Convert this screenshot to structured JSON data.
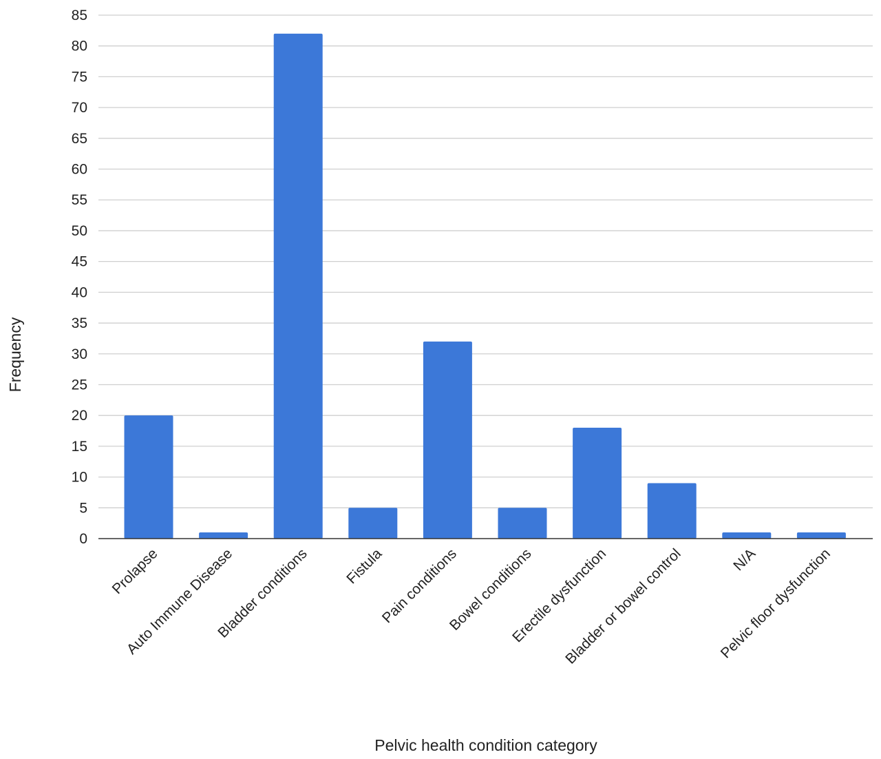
{
  "chart_data": {
    "type": "bar",
    "categories": [
      "Prolapse",
      "Auto Immune Disease",
      "Bladder conditions",
      "Fistula",
      "Pain conditions",
      "Bowel conditions",
      "Erectile dysfunction",
      "Bladder or bowel control",
      "N/A",
      "Pelvic floor dysfunction"
    ],
    "values": [
      20,
      1,
      82,
      5,
      32,
      5,
      18,
      9,
      1,
      1
    ],
    "title": "",
    "xlabel": "Pelvic health condition category",
    "ylabel": "Frequency",
    "ylim": [
      0,
      85
    ],
    "yticks": [
      0,
      5,
      10,
      15,
      20,
      25,
      30,
      35,
      40,
      45,
      50,
      55,
      60,
      65,
      70,
      75,
      80,
      85
    ],
    "grid": true,
    "legend": "none",
    "bar_color": "#3c78d8"
  }
}
